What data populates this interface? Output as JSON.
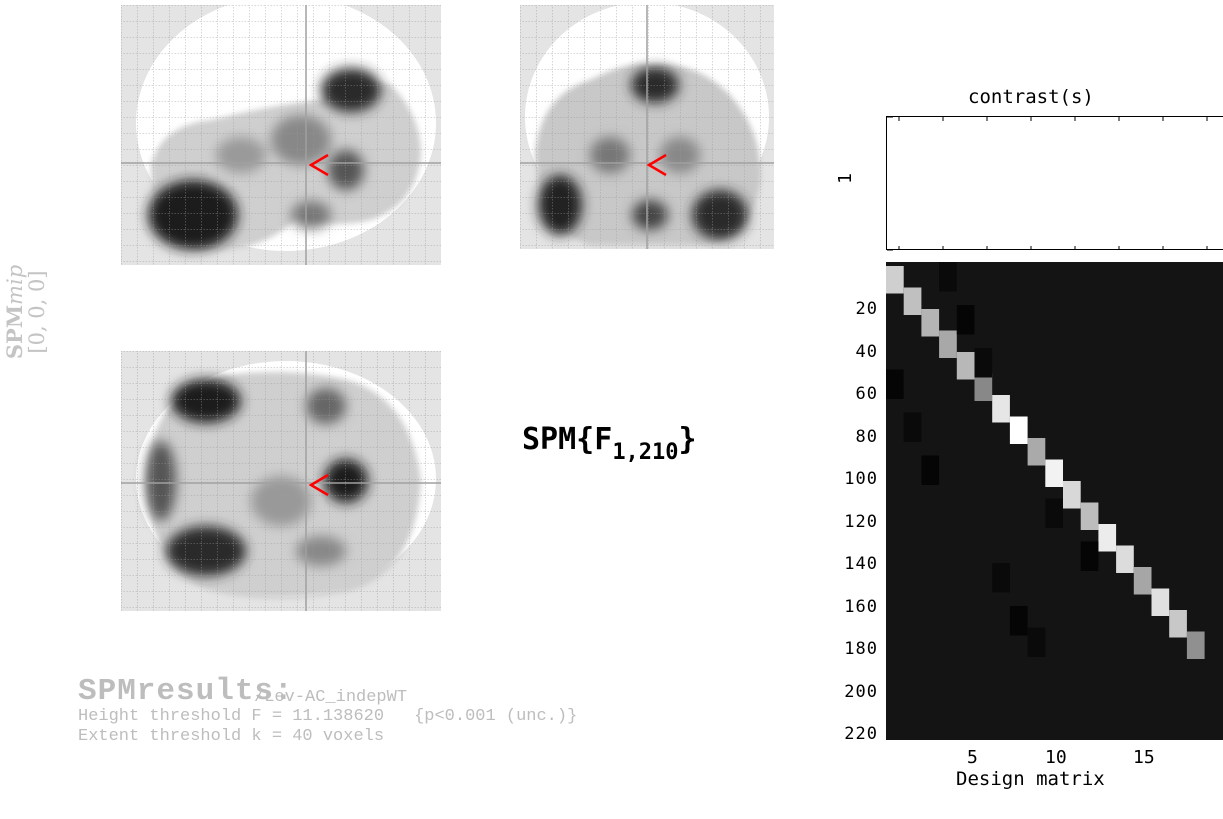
{
  "side_label": {
    "line1": "SPM",
    "line1_italic": "mip",
    "line2": "[0, 0, 0]"
  },
  "spm_title": {
    "prefix": "SPM{F",
    "subscript": "1,210",
    "suffix": "}"
  },
  "results": {
    "title": "SPMresults:",
    "subtitle": "/Lev-AC_indepWT",
    "height_threshold": "Height threshold F = 11.138620",
    "height_p": "{p<0.001 (unc.)}",
    "extent_threshold": "Extent threshold k = 40 voxels"
  },
  "contrast": {
    "title": "contrast(s)",
    "row_label": "1"
  },
  "design_matrix": {
    "title": "Design matrix",
    "y_ticks": [
      "20",
      "40",
      "60",
      "80",
      "100",
      "120",
      "140",
      "160",
      "180",
      "200",
      "220"
    ],
    "x_ticks": [
      "5",
      "10",
      "15"
    ]
  },
  "colors": {
    "glass_brain_bg": "#e4e4e4",
    "cursor": "#ff0000",
    "dm_bg": "#141414",
    "faded_text": "#bdbdbd"
  }
}
